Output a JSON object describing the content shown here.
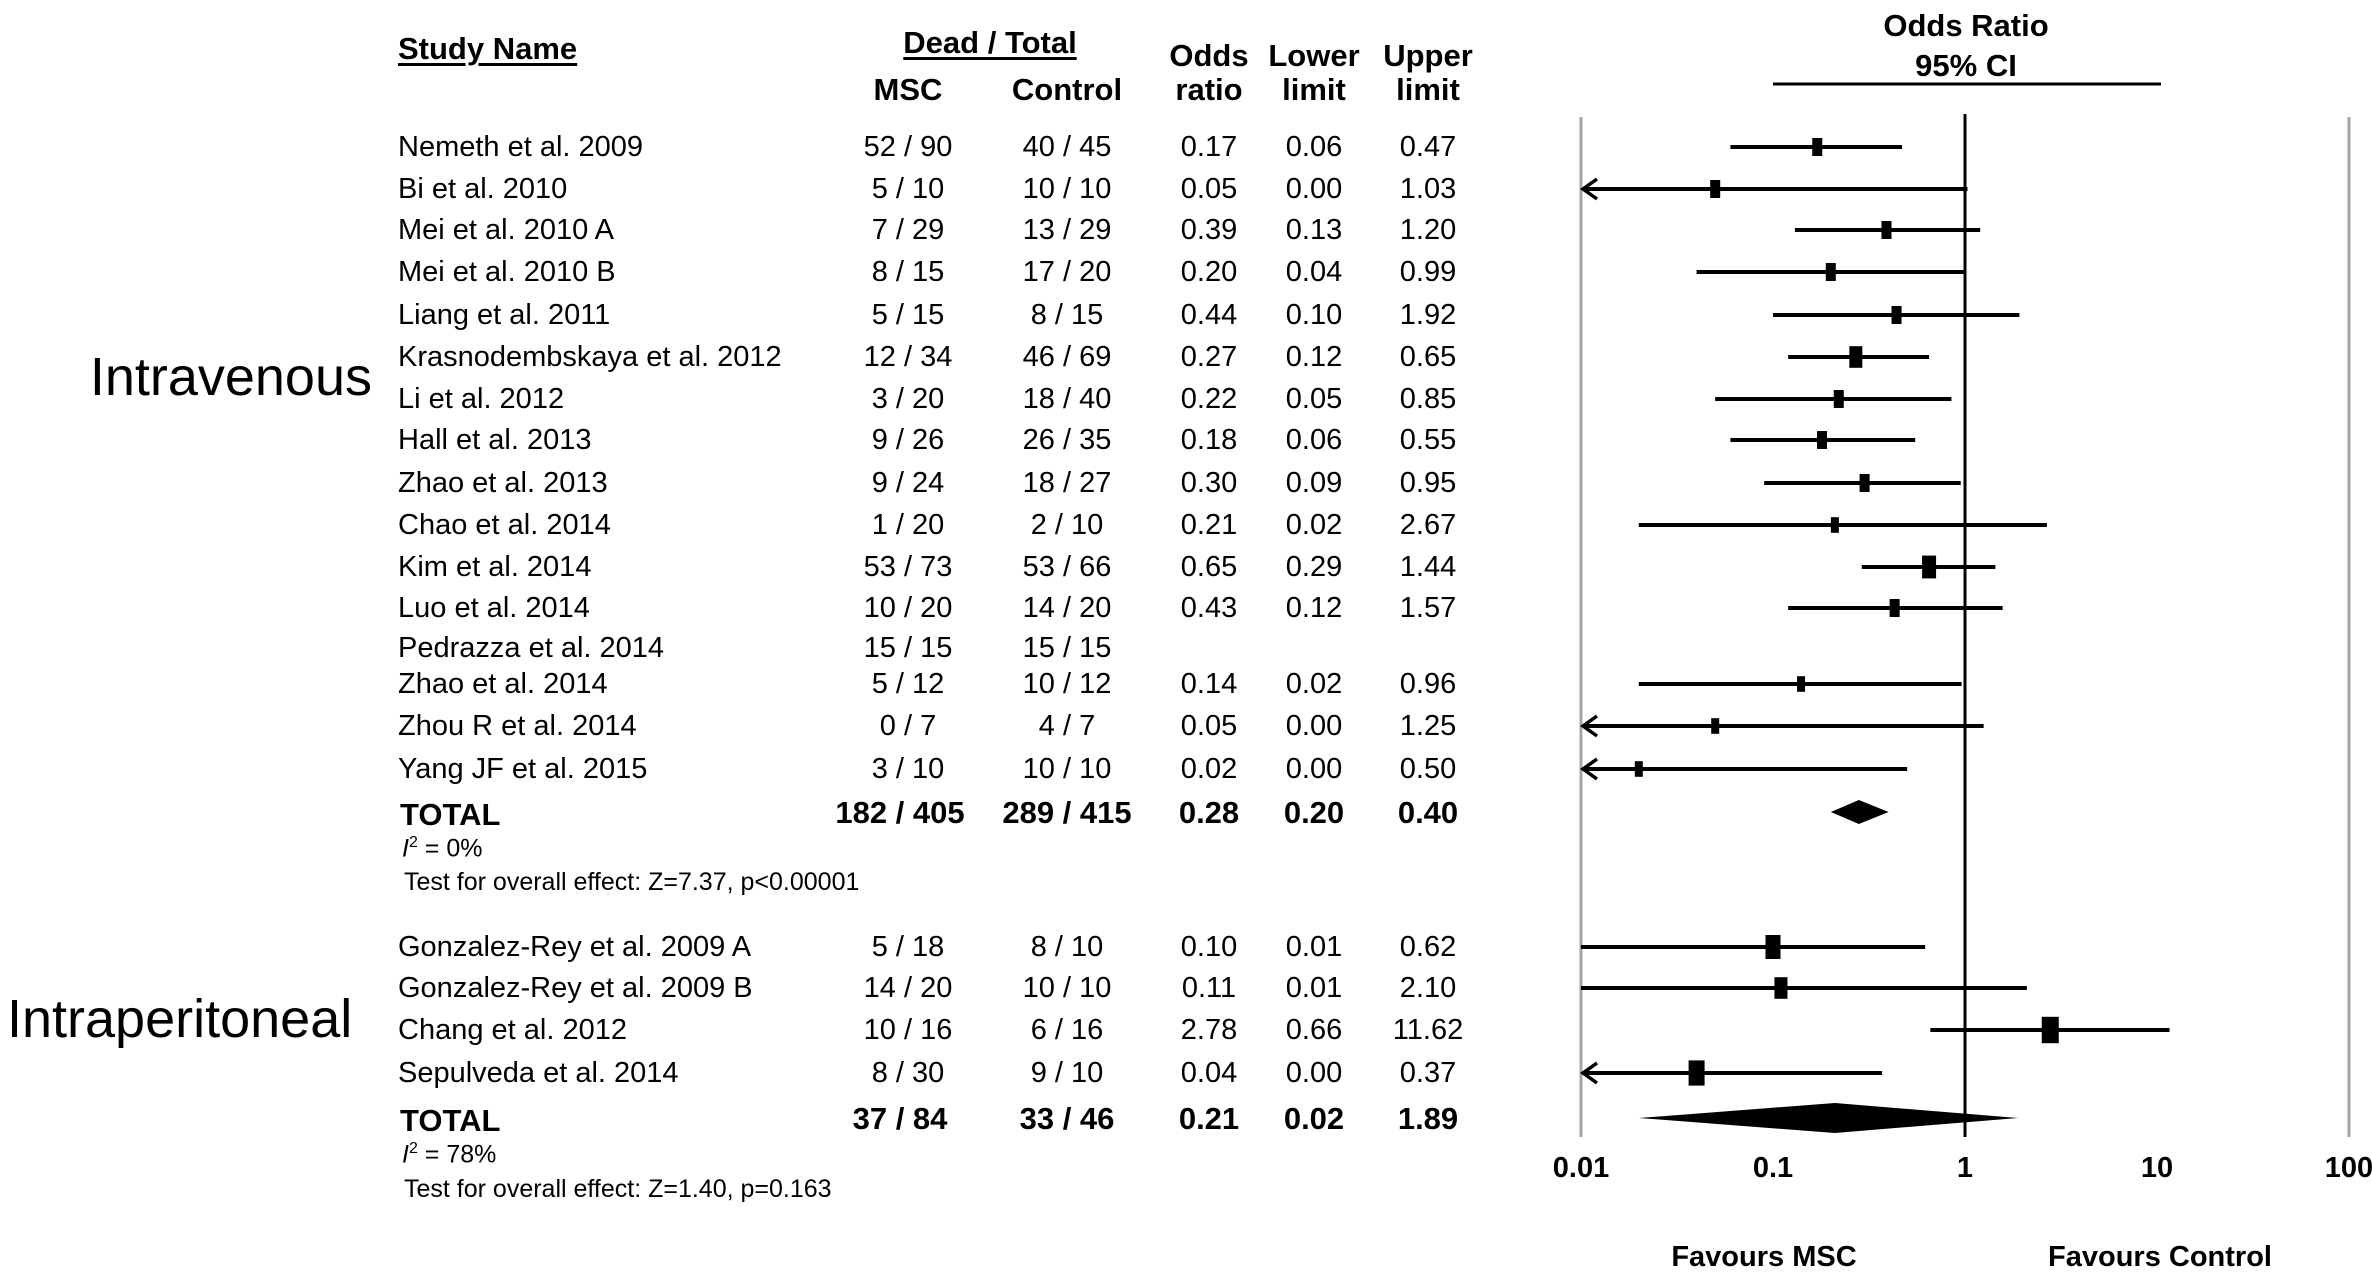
{
  "header": {
    "study_name": "Study Name",
    "dead_total": "Dead / Total",
    "msc": "MSC",
    "control": "Control",
    "odds_ratio_1": "Odds",
    "odds_ratio_2": "ratio",
    "lower_1": "Lower",
    "lower_2": "limit",
    "upper_1": "Upper",
    "upper_2": "limit",
    "plot_title_1": "Odds Ratio",
    "plot_title_2": "95% CI"
  },
  "groups": [
    {
      "label": "Intravenous",
      "studies": [
        {
          "name": "Nemeth et al. 2009",
          "msc": "52 / 90",
          "control": "40 / 45",
          "or": "0.17",
          "lower": "0.06",
          "upper": "0.47"
        },
        {
          "name": "Bi et al. 2010",
          "msc": "5 / 10",
          "control": "10 / 10",
          "or": "0.05",
          "lower": "0.00",
          "upper": "1.03"
        },
        {
          "name": "Mei et al. 2010 A",
          "msc": "7 / 29",
          "control": "13 / 29",
          "or": "0.39",
          "lower": "0.13",
          "upper": "1.20"
        },
        {
          "name": "Mei et al. 2010 B",
          "msc": "8 / 15",
          "control": "17 / 20",
          "or": "0.20",
          "lower": "0.04",
          "upper": "0.99"
        },
        {
          "name": "Liang et al. 2011",
          "msc": "5 / 15",
          "control": "8 / 15",
          "or": "0.44",
          "lower": "0.10",
          "upper": "1.92"
        },
        {
          "name": "Krasnodembskaya et al. 2012",
          "msc": "12 / 34",
          "control": "46 / 69",
          "or": "0.27",
          "lower": "0.12",
          "upper": "0.65"
        },
        {
          "name": "Li et al. 2012",
          "msc": "3 / 20",
          "control": "18 / 40",
          "or": "0.22",
          "lower": "0.05",
          "upper": "0.85"
        },
        {
          "name": "Hall et al. 2013",
          "msc": "9 / 26",
          "control": "26 / 35",
          "or": "0.18",
          "lower": "0.06",
          "upper": "0.55"
        },
        {
          "name": "Zhao et al. 2013",
          "msc": "9 / 24",
          "control": "18 / 27",
          "or": "0.30",
          "lower": "0.09",
          "upper": "0.95"
        },
        {
          "name": "Chao et al. 2014",
          "msc": "1 / 20",
          "control": "2 / 10",
          "or": "0.21",
          "lower": "0.02",
          "upper": "2.67"
        },
        {
          "name": "Kim et al. 2014",
          "msc": "53 / 73",
          "control": "53 / 66",
          "or": "0.65",
          "lower": "0.29",
          "upper": "1.44"
        },
        {
          "name": "Luo et al. 2014",
          "msc": "10 / 20",
          "control": "14 / 20",
          "or": "0.43",
          "lower": "0.12",
          "upper": "1.57"
        },
        {
          "name": "Pedrazza et al. 2014",
          "msc": "15 / 15",
          "control": "15 / 15",
          "or": "",
          "lower": "",
          "upper": ""
        },
        {
          "name": "Zhao et al. 2014",
          "msc": "5 / 12",
          "control": "10 / 12",
          "or": "0.14",
          "lower": "0.02",
          "upper": "0.96"
        },
        {
          "name": "Zhou R et al. 2014",
          "msc": "0 / 7",
          "control": "4 / 7",
          "or": "0.05",
          "lower": "0.00",
          "upper": "1.25"
        },
        {
          "name": "Yang JF et al. 2015",
          "msc": "3 / 10",
          "control": "10 / 10",
          "or": "0.02",
          "lower": "0.00",
          "upper": "0.50"
        }
      ],
      "total": {
        "label": "TOTAL",
        "msc": "182 / 405",
        "control": "289 / 415",
        "or": "0.28",
        "lower": "0.20",
        "upper": "0.40"
      },
      "i2_label": "I",
      "i2_value": " = 0%",
      "test": "Test for overall effect: Z=7.37, p<0.00001"
    },
    {
      "label": "Intraperitoneal",
      "studies": [
        {
          "name": "Gonzalez-Rey et al. 2009 A",
          "msc": "5 / 18",
          "control": "8 / 10",
          "or": "0.10",
          "lower": "0.01",
          "upper": "0.62"
        },
        {
          "name": "Gonzalez-Rey et al. 2009 B",
          "msc": "14 / 20",
          "control": "10 / 10",
          "or": "0.11",
          "lower": "0.01",
          "upper": "2.10"
        },
        {
          "name": "Chang et al. 2012",
          "msc": "10 / 16",
          "control": "6 / 16",
          "or": "2.78",
          "lower": "0.66",
          "upper": "11.62"
        },
        {
          "name": "Sepulveda et al. 2014",
          "msc": "8 / 30",
          "control": "9 / 10",
          "or": "0.04",
          "lower": "0.00",
          "upper": "0.37"
        }
      ],
      "total": {
        "label": "TOTAL",
        "msc": "37 / 84",
        "control": "33 / 46",
        "or": "0.21",
        "lower": "0.02",
        "upper": "1.89"
      },
      "i2_label": "I",
      "i2_value": " = 78%",
      "test": "Test for overall effect: Z=1.40, p=0.163"
    }
  ],
  "favours": {
    "left": "Favours MSC",
    "right": "Favours Control"
  },
  "chart_data": {
    "type": "forest",
    "title": "Odds Ratio 95% CI",
    "xscale": "log",
    "xlim": [
      0.01,
      100
    ],
    "xticks": [
      0.01,
      0.1,
      1,
      10,
      100
    ],
    "xtick_labels": [
      "0.01",
      "0.1",
      "1",
      "10",
      "100"
    ],
    "reference_line": 1,
    "xlabel_left": "Favours MSC",
    "xlabel_right": "Favours Control",
    "series": [
      {
        "name": "Intravenous",
        "points": [
          {
            "study": "Nemeth et al. 2009",
            "or": 0.17,
            "lower": 0.06,
            "upper": 0.47,
            "weight": 1
          },
          {
            "study": "Bi et al. 2010",
            "or": 0.05,
            "lower": 0.0,
            "upper": 1.03,
            "weight": 1
          },
          {
            "study": "Mei et al. 2010 A",
            "or": 0.39,
            "lower": 0.13,
            "upper": 1.2,
            "weight": 1
          },
          {
            "study": "Mei et al. 2010 B",
            "or": 0.2,
            "lower": 0.04,
            "upper": 0.99,
            "weight": 1
          },
          {
            "study": "Liang et al. 2011",
            "or": 0.44,
            "lower": 0.1,
            "upper": 1.92,
            "weight": 1
          },
          {
            "study": "Krasnodembskaya et al. 2012",
            "or": 0.27,
            "lower": 0.12,
            "upper": 0.65,
            "weight": 1.3
          },
          {
            "study": "Li et al. 2012",
            "or": 0.22,
            "lower": 0.05,
            "upper": 0.85,
            "weight": 1
          },
          {
            "study": "Hall et al. 2013",
            "or": 0.18,
            "lower": 0.06,
            "upper": 0.55,
            "weight": 1
          },
          {
            "study": "Zhao et al. 2013",
            "or": 0.3,
            "lower": 0.09,
            "upper": 0.95,
            "weight": 1
          },
          {
            "study": "Chao et al. 2014",
            "or": 0.21,
            "lower": 0.02,
            "upper": 2.67,
            "weight": 0.8
          },
          {
            "study": "Kim et al. 2014",
            "or": 0.65,
            "lower": 0.29,
            "upper": 1.44,
            "weight": 1.4
          },
          {
            "study": "Luo et al. 2014",
            "or": 0.43,
            "lower": 0.12,
            "upper": 1.57,
            "weight": 1
          },
          {
            "study": "Pedrazza et al. 2014",
            "or": null,
            "lower": null,
            "upper": null,
            "weight": 0
          },
          {
            "study": "Zhao et al. 2014",
            "or": 0.14,
            "lower": 0.02,
            "upper": 0.96,
            "weight": 0.8
          },
          {
            "study": "Zhou R et al. 2014",
            "or": 0.05,
            "lower": 0.0,
            "upper": 1.25,
            "weight": 0.8
          },
          {
            "study": "Yang JF et al. 2015",
            "or": 0.02,
            "lower": 0.0,
            "upper": 0.5,
            "weight": 0.8
          }
        ],
        "pooled": {
          "or": 0.28,
          "lower": 0.2,
          "upper": 0.4
        }
      },
      {
        "name": "Intraperitoneal",
        "points": [
          {
            "study": "Gonzalez-Rey et al. 2009 A",
            "or": 0.1,
            "lower": 0.01,
            "upper": 0.62,
            "weight": 1.5
          },
          {
            "study": "Gonzalez-Rey et al. 2009 B",
            "or": 0.11,
            "lower": 0.01,
            "upper": 2.1,
            "weight": 1.3
          },
          {
            "study": "Chang et al. 2012",
            "or": 2.78,
            "lower": 0.66,
            "upper": 11.62,
            "weight": 1.7
          },
          {
            "study": "Sepulveda et al. 2014",
            "or": 0.04,
            "lower": 0.0,
            "upper": 0.37,
            "weight": 1.6
          }
        ],
        "pooled": {
          "or": 0.21,
          "lower": 0.02,
          "upper": 1.89
        }
      }
    ]
  }
}
